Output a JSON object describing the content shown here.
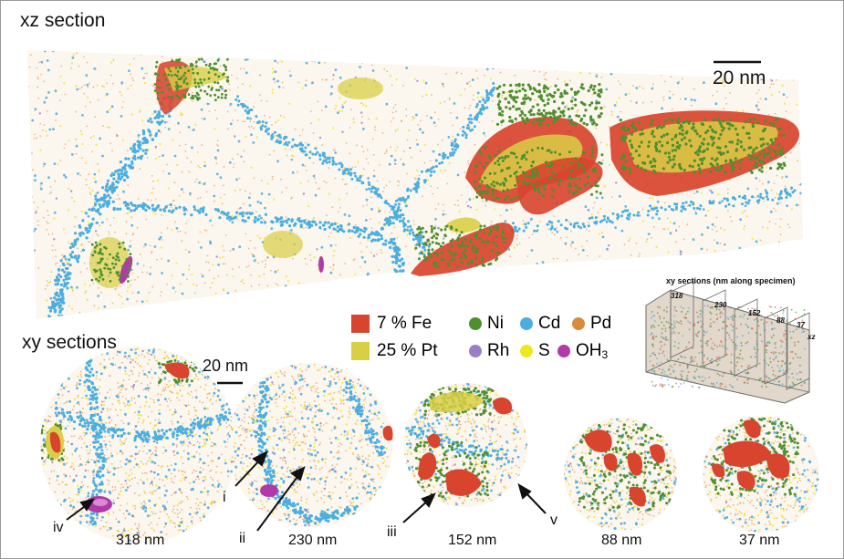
{
  "panels": {
    "xz_title": "xz section",
    "xy_title": "xy sections"
  },
  "scale_bars": {
    "xz": "20 nm",
    "xy": "20 nm"
  },
  "legend": {
    "fe_label": "7 % Fe",
    "pt_label": "25 % Pt",
    "ni": "Ni",
    "cd": "Cd",
    "pd": "Pd",
    "rh": "Rh",
    "s": "S",
    "oh_base": "OH",
    "oh_sub": "3"
  },
  "colors": {
    "fe": "#d8442d",
    "pt": "#d9cf45",
    "ni": "#4e8f2e",
    "cd": "#4aaee0",
    "pd": "#d98a3a",
    "rh": "#9a7fc6",
    "s": "#f0e81e",
    "oh3": "#b23aa8"
  },
  "inset": {
    "title": "xy sections (nm along specimen)",
    "ticks": [
      "318",
      "230",
      "152",
      "88",
      "37"
    ],
    "xz": "xz"
  },
  "sections": [
    {
      "depth": "318 nm"
    },
    {
      "depth": "230 nm"
    },
    {
      "depth": "152 nm"
    },
    {
      "depth": "88 nm"
    },
    {
      "depth": "37 nm"
    }
  ],
  "markers": [
    "i",
    "ii",
    "iii",
    "iv",
    "v"
  ]
}
